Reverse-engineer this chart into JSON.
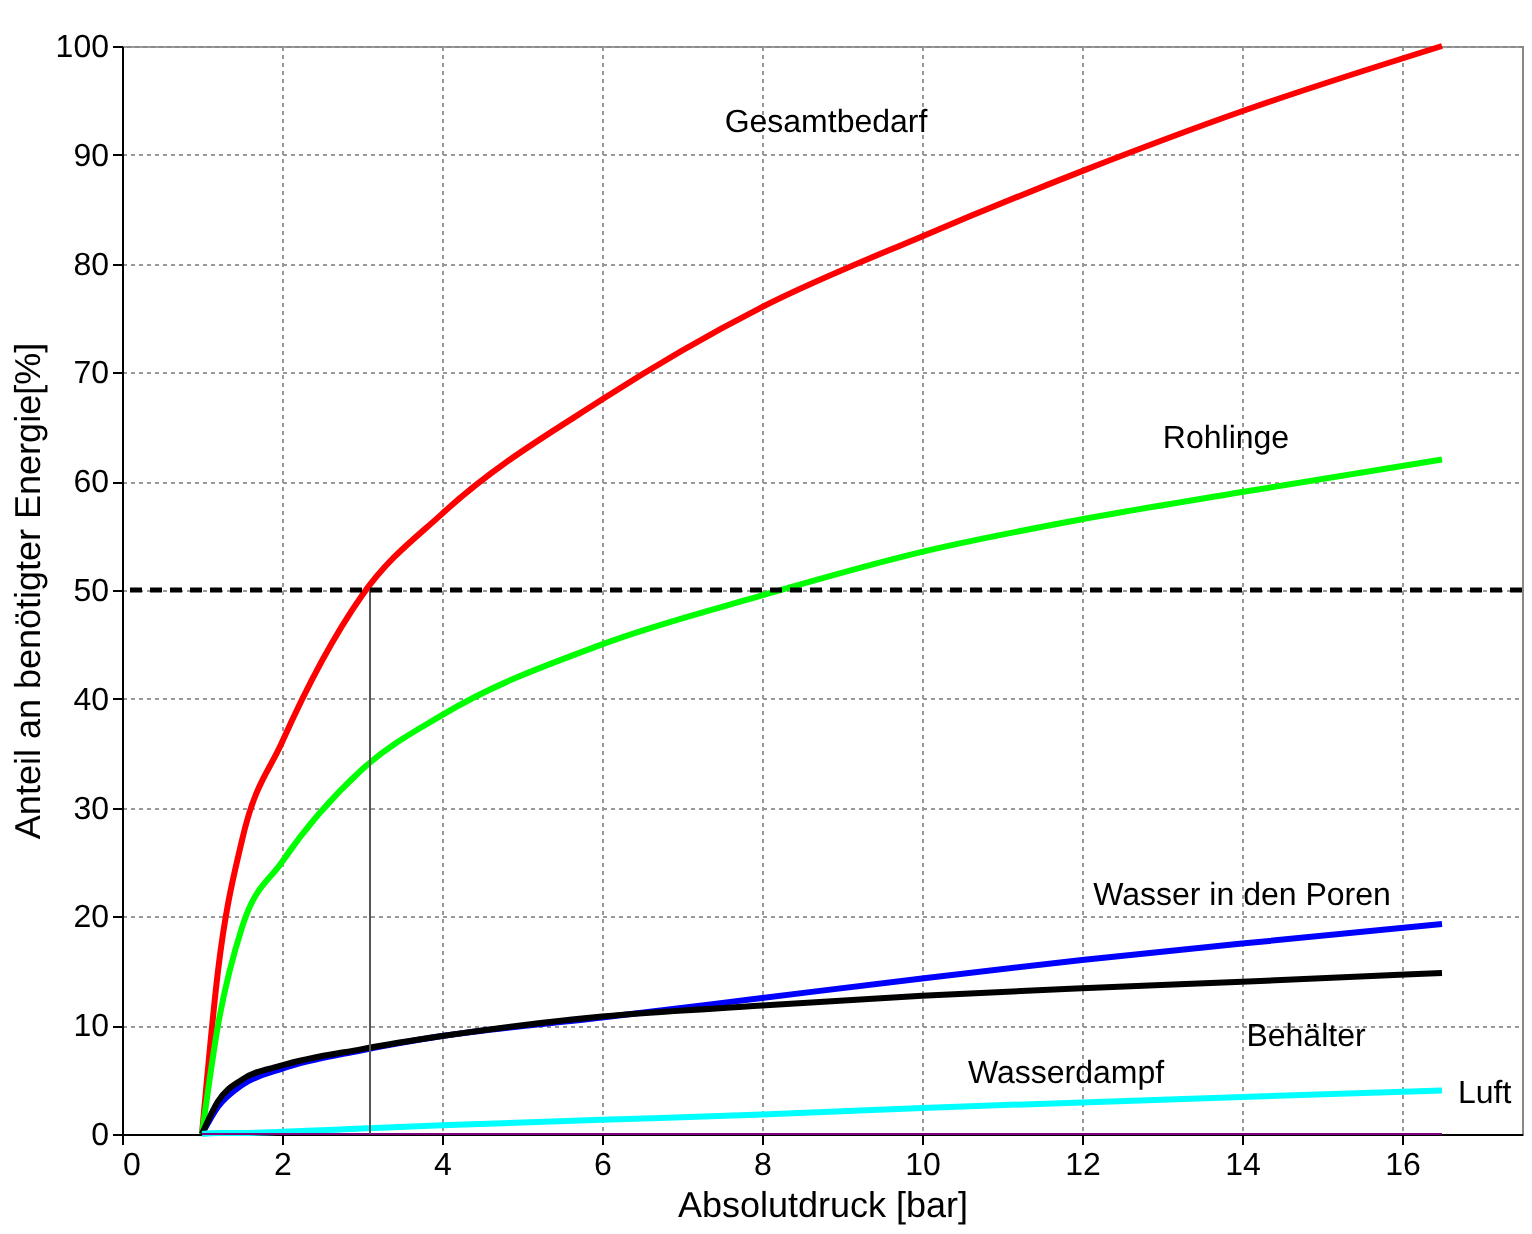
{
  "chart_data": {
    "type": "line",
    "xlabel": "Absolutdruck [bar]",
    "ylabel": "Anteil an benötigter Energie[%]",
    "xlim": [
      0,
      17.5
    ],
    "ylim": [
      0,
      100
    ],
    "xticks": [
      0,
      2,
      4,
      6,
      8,
      10,
      12,
      14,
      16
    ],
    "yticks": [
      0,
      10,
      20,
      30,
      40,
      50,
      60,
      70,
      80,
      90,
      100
    ],
    "grid": true,
    "line_style": "solid",
    "marker": "none",
    "x": [
      1,
      1.2,
      1.5,
      2,
      3,
      4,
      6,
      8,
      10,
      12,
      14,
      16.5
    ],
    "series": [
      {
        "name": "Gesamtbedarf",
        "color": "#ff0000",
        "values": [
          0,
          15,
          27,
          36,
          49.5,
          57,
          67.5,
          76,
          82.5,
          88.5,
          94,
          100
        ]
      },
      {
        "name": "Rohlinge",
        "color": "#00ff00",
        "values": [
          0,
          10,
          19,
          25,
          33.5,
          38.5,
          45,
          49.5,
          53.5,
          56.5,
          59,
          62
        ]
      },
      {
        "name": "Wasser in den Poren",
        "color": "#0000ff",
        "values": [
          0,
          2.5,
          4.5,
          6,
          7.7,
          9,
          10.7,
          12.5,
          14.3,
          16,
          17.5,
          19.3
        ]
      },
      {
        "name": "Behälter",
        "color": "#000000",
        "values": [
          0,
          3,
          5,
          6.3,
          7.8,
          9,
          10.8,
          11.8,
          12.7,
          13.4,
          14,
          14.8
        ]
      },
      {
        "name": "Luft",
        "color": "#00ffff",
        "values": [
          0,
          0.1,
          0.1,
          0.2,
          0.5,
          0.8,
          1.3,
          1.8,
          2.4,
          2.9,
          3.4,
          4
        ]
      },
      {
        "color": "#800080",
        "values": [
          0,
          0,
          0,
          0,
          0,
          0,
          0,
          0,
          0,
          0,
          0,
          0
        ]
      },
      {
        "color": "#555555",
        "x": [
          3.1,
          3.1
        ],
        "values": [
          50,
          0
        ]
      }
    ],
    "annotations": [
      "Wasserdampf"
    ],
    "ref_lines": [
      {
        "axis": "y",
        "value": 50,
        "color": "#000000",
        "line_style": "dashed"
      }
    ]
  }
}
